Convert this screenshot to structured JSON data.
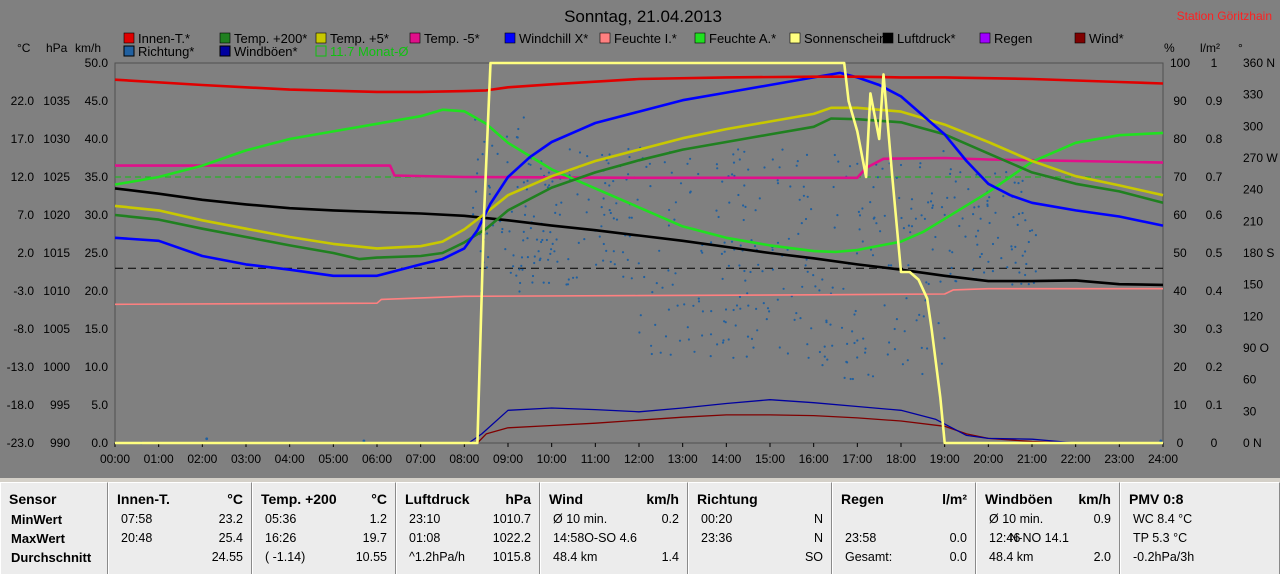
{
  "station": "Station Göritzhain",
  "title": "Sonntag, 21.04.2013",
  "units": {
    "c": "°C",
    "hpa": "hPa",
    "kmh": "km/h",
    "pct": "%",
    "lm2": "l/m²",
    "deg": "°"
  },
  "legend_row1": [
    {
      "label": "Innen-T.*",
      "color": "#e00000"
    },
    {
      "label": "Temp. +200*",
      "color": "#208020"
    },
    {
      "label": "Temp. +5*",
      "color": "#c8c800"
    },
    {
      "label": "Temp. -5*",
      "color": "#e0108a"
    },
    {
      "label": "Windchill X*",
      "color": "#0000ff"
    },
    {
      "label": "Feuchte I.*",
      "color": "#ff8080"
    },
    {
      "label": "Feuchte A.*",
      "color": "#20e020"
    },
    {
      "label": "Sonnenschein*",
      "color": "#ffff80"
    },
    {
      "label": "Luftdruck*",
      "color": "#000000"
    },
    {
      "label": "Regen",
      "color": "#a000ff"
    },
    {
      "label": "Wind*",
      "color": "#800000"
    }
  ],
  "legend_row2": [
    {
      "label": "Richtung*",
      "color": "#2060a0"
    },
    {
      "label": "Windböen*",
      "color": "#0000a0"
    },
    {
      "label": "11.7 Monat-Ø",
      "color": "#10c010"
    }
  ],
  "axes": {
    "temp_ticks": [
      "22.0",
      "17.0",
      "12.0",
      "7.0",
      "2.0",
      "-3.0",
      "-8.0",
      "-13.0",
      "-18.0",
      "-23.0"
    ],
    "hpa_ticks": [
      "1035",
      "1030",
      "1025",
      "1020",
      "1015",
      "1010",
      "1005",
      "1000",
      "995",
      "990"
    ],
    "kmh_ticks": [
      "50.0",
      "45.0",
      "40.0",
      "35.0",
      "30.0",
      "25.0",
      "20.0",
      "15.0",
      "10.0",
      "5.0",
      "0.0"
    ],
    "pct_ticks": [
      "100",
      "90",
      "80",
      "70",
      "60",
      "50",
      "40",
      "30",
      "20",
      "10",
      "0"
    ],
    "lm2_ticks": [
      "1",
      "0.9",
      "0.8",
      "0.7",
      "0.6",
      "0.5",
      "0.4",
      "0.3",
      "0.2",
      "0.1",
      "0"
    ],
    "deg_ticks": [
      "360 N",
      "330",
      "300",
      "270 W",
      "240",
      "210",
      "180 S",
      "150",
      "120",
      "90 O",
      "60",
      "30",
      "0 N"
    ],
    "time_ticks": [
      "00:00",
      "01:00",
      "02:00",
      "03:00",
      "04:00",
      "05:00",
      "06:00",
      "07:00",
      "08:00",
      "09:00",
      "10:00",
      "11:00",
      "12:00",
      "13:00",
      "14:00",
      "15:00",
      "16:00",
      "17:00",
      "18:00",
      "19:00",
      "20:00",
      "21:00",
      "22:00",
      "23:00",
      "24:00"
    ]
  },
  "chart_data": {
    "type": "line",
    "title": "Sonntag, 21.04.2013",
    "x_unit": "hours",
    "xlim": [
      0,
      24
    ],
    "ylim_temp": [
      -23,
      27
    ],
    "ylim_pressure": [
      990,
      1040
    ],
    "ylim_pct": [
      0,
      100
    ],
    "series": [
      {
        "name": "Innen-T.*",
        "axis": "temp",
        "color": "#e00000",
        "x": [
          0,
          2,
          4,
          6,
          7,
          8,
          8.5,
          9,
          10,
          12,
          14,
          16,
          17,
          18,
          19,
          20,
          21,
          22,
          23,
          24
        ],
        "y": [
          24.8,
          24.1,
          23.5,
          23.2,
          23.2,
          23.3,
          23.4,
          23.8,
          24.2,
          24.9,
          25.1,
          25.2,
          25.2,
          25.1,
          25.1,
          25.0,
          24.9,
          24.7,
          24.5,
          24.3
        ]
      },
      {
        "name": "Temp. +200*",
        "axis": "temp",
        "color": "#208020",
        "x": [
          0,
          1,
          2,
          3,
          4,
          5,
          5.6,
          6,
          7,
          7.5,
          8,
          8.5,
          9,
          10,
          11,
          12,
          13,
          14,
          15,
          16,
          16.4,
          17,
          18,
          19,
          20,
          21,
          22,
          23,
          24
        ],
        "y": [
          7,
          6.4,
          5.2,
          4.1,
          3.0,
          2.0,
          1.2,
          1.4,
          1.6,
          2.0,
          3.4,
          5.2,
          7.6,
          10.6,
          12.6,
          14.2,
          15.6,
          16.6,
          17.6,
          18.6,
          19.7,
          19.6,
          19.2,
          17.6,
          15.1,
          12.6,
          11.1,
          10.1,
          8.6
        ]
      },
      {
        "name": "Temp. +5*",
        "axis": "temp",
        "color": "#c8c800",
        "x": [
          0,
          1,
          2,
          3,
          4,
          5,
          6,
          7,
          7.5,
          8,
          8.5,
          9,
          10,
          11,
          12,
          13,
          14,
          15,
          16,
          16.4,
          17,
          18,
          19,
          20,
          21,
          22,
          23,
          24
        ],
        "y": [
          8.2,
          7.6,
          6.3,
          5.2,
          4.1,
          3.2,
          2.6,
          2.9,
          3.5,
          5.1,
          7.3,
          9.6,
          12.1,
          14.1,
          15.6,
          17.1,
          18.3,
          19.3,
          20.3,
          21.1,
          21.1,
          20.6,
          18.9,
          16.6,
          14.1,
          12.1,
          10.9,
          9.6
        ]
      },
      {
        "name": "Temp. -5*",
        "axis": "temp",
        "color": "#e0108a",
        "x": [
          0,
          6.3,
          6.4,
          8,
          12,
          15,
          17,
          17.2,
          17.6,
          19,
          20,
          22,
          24
        ],
        "y": [
          13.5,
          13.5,
          12.2,
          12.0,
          11.9,
          11.9,
          11.9,
          13.2,
          14.4,
          14.5,
          14.3,
          14.1,
          13.9
        ]
      },
      {
        "name": "Windchill X*",
        "axis": "temp",
        "color": "#0000ff",
        "x": [
          0,
          1,
          2,
          3,
          4,
          5,
          6,
          7,
          7.5,
          8,
          8.3,
          8.6,
          9,
          9.5,
          10,
          11,
          12,
          13,
          14,
          15,
          16,
          16.6,
          17,
          17.5,
          18,
          18.5,
          19,
          19.5,
          20,
          20.5,
          21,
          22,
          23,
          24
        ],
        "y": [
          4.0,
          3.6,
          1.6,
          0.5,
          -0.2,
          -1.0,
          -1.0,
          0.5,
          1.2,
          2.6,
          5.0,
          8.5,
          12.0,
          14.6,
          16.6,
          19.1,
          20.6,
          22.1,
          23.1,
          24.1,
          25.1,
          25.7,
          25.1,
          24.1,
          22.6,
          20.1,
          17.6,
          14.1,
          11.1,
          9.6,
          8.6,
          7.6,
          6.8,
          5.6
        ]
      },
      {
        "name": "Luftdruck*",
        "axis": "pressure",
        "color": "#000000",
        "x": [
          0,
          1,
          2,
          3,
          4,
          5,
          6,
          7,
          8,
          9,
          10,
          11,
          12,
          13,
          14,
          15,
          16,
          17,
          18,
          19,
          20,
          21,
          22,
          23,
          24
        ],
        "y": [
          1023.5,
          1022.8,
          1022.0,
          1021.4,
          1020.9,
          1020.6,
          1020.4,
          1020.2,
          1019.9,
          1019.3,
          1018.6,
          1018.0,
          1017.3,
          1016.6,
          1015.8,
          1015.0,
          1014.3,
          1013.5,
          1012.8,
          1012.0,
          1011.3,
          1011.3,
          1011.4,
          1010.9,
          1010.8
        ]
      },
      {
        "name": "Feuchte I.*",
        "axis": "pct",
        "color": "#ff8080",
        "x": [
          0,
          6,
          6.1,
          8,
          12,
          16,
          19,
          19.2,
          20,
          21,
          22,
          23,
          24
        ],
        "y": [
          36.5,
          36.8,
          37.8,
          38.6,
          38.8,
          39.0,
          39.2,
          40.3,
          40.6,
          40.6,
          40.6,
          40.6,
          40.6
        ]
      },
      {
        "name": "Feuchte A.*",
        "axis": "pct",
        "color": "#20e020",
        "x": [
          0,
          1,
          2,
          3,
          4,
          5,
          6,
          7,
          7.5,
          8,
          8.5,
          9,
          10,
          11,
          12,
          13,
          14,
          15,
          16,
          16.5,
          17,
          18,
          18.5,
          19,
          20,
          21,
          22,
          23,
          24
        ],
        "y": [
          68,
          70,
          73,
          77,
          80,
          82,
          84,
          86,
          87.7,
          87.3,
          84,
          79,
          72,
          67,
          62,
          57,
          54,
          52,
          50.5,
          50.3,
          50.8,
          53,
          55.5,
          59,
          66,
          74,
          79,
          81,
          81.6
        ]
      },
      {
        "name": "Sonnenschein*",
        "axis": "pct",
        "color": "#ffff80",
        "x": [
          0,
          8.3,
          8.45,
          8.6,
          16.7,
          16.8,
          17.0,
          17.2,
          17.3,
          17.5,
          17.6,
          17.8,
          18.0,
          18.2,
          18.4,
          18.6,
          18.7,
          18.9,
          19.0,
          24
        ],
        "y": [
          0,
          0,
          60,
          100,
          100,
          90,
          82,
          70,
          92,
          80,
          97,
          70,
          45,
          45,
          43,
          38,
          30,
          12,
          0,
          0
        ]
      },
      {
        "name": "Wind*",
        "axis": "kmh",
        "color": "#800000",
        "x": [
          0,
          8.3,
          8.5,
          9,
          10,
          11,
          12,
          13,
          14,
          15,
          16,
          17,
          18,
          19,
          19.5,
          20,
          21,
          22,
          24
        ],
        "y": [
          0,
          0,
          1.2,
          2.0,
          2.3,
          2.6,
          3.0,
          3.4,
          3.7,
          3.7,
          3.6,
          3.3,
          2.9,
          2.2,
          1.2,
          0.6,
          0.2,
          0,
          0
        ]
      },
      {
        "name": "Windböen*",
        "axis": "kmh",
        "color": "#0000a0",
        "x": [
          0,
          8.1,
          8.4,
          9,
          10,
          11,
          12,
          13,
          14,
          15,
          16,
          17,
          18,
          18.8,
          19.5,
          20,
          21,
          22,
          24
        ],
        "y": [
          0,
          0,
          1.2,
          4.3,
          4.6,
          4.4,
          4.1,
          4.6,
          5.2,
          5.7,
          5.3,
          4.8,
          4.3,
          3.1,
          1.0,
          0.6,
          0.5,
          0,
          0
        ]
      }
    ]
  },
  "panels": [
    {
      "header": "Sensor",
      "header_unit": "",
      "rows": [
        [
          "MinWert",
          "",
          ""
        ],
        [
          "MaxWert",
          "",
          ""
        ],
        [
          "Durchschnitt",
          "",
          ""
        ]
      ]
    },
    {
      "header": "Innen-T.",
      "header_unit": "°C",
      "rows": [
        [
          "07:58",
          "",
          "23.2"
        ],
        [
          "20:48",
          "",
          "25.4"
        ],
        [
          "",
          "",
          "24.55"
        ]
      ]
    },
    {
      "header": "Temp. +200",
      "header_unit": "°C",
      "rows": [
        [
          "05:36",
          "",
          "1.2"
        ],
        [
          "16:26",
          "",
          "19.7"
        ],
        [
          "( -1.14)",
          "",
          "10.55"
        ]
      ]
    },
    {
      "header": "Luftdruck",
      "header_unit": "hPa",
      "rows": [
        [
          "23:10",
          "",
          "1010.7"
        ],
        [
          "01:08",
          "",
          "1022.2"
        ],
        [
          "^1.2hPa/h",
          "",
          "1015.8"
        ]
      ]
    },
    {
      "header": "Wind",
      "header_unit": "km/h",
      "rows": [
        [
          "Ø 10 min.",
          "",
          "0.2"
        ],
        [
          "14:58",
          "O-SO 4.6",
          ""
        ],
        [
          "48.4 km",
          "",
          "1.4"
        ]
      ]
    },
    {
      "header": "Richtung",
      "header_unit": "",
      "rows": [
        [
          "00:20",
          "",
          "N"
        ],
        [
          "23:36",
          "",
          "N"
        ],
        [
          "",
          "",
          "SO"
        ]
      ]
    },
    {
      "header": "Regen",
      "header_unit": "l/m²",
      "rows": [
        [
          "",
          "",
          ""
        ],
        [
          "23:58",
          "",
          "0.0"
        ],
        [
          "Gesamt:",
          "",
          "0.0"
        ]
      ]
    },
    {
      "header": "Windböen",
      "header_unit": "km/h",
      "rows": [
        [
          "Ø 10 min.",
          "",
          "0.9"
        ],
        [
          "12:46",
          "N-NO 14.1",
          ""
        ],
        [
          "48.4 km",
          "",
          "2.0"
        ]
      ]
    },
    {
      "header": "PMV 0:8",
      "header_unit": "",
      "rows": [
        [
          "WC 8.4 °C",
          "",
          ""
        ],
        [
          "TP 5.3 °C",
          "",
          ""
        ],
        [
          "-0.2hPa/3h",
          "",
          ""
        ]
      ]
    }
  ]
}
